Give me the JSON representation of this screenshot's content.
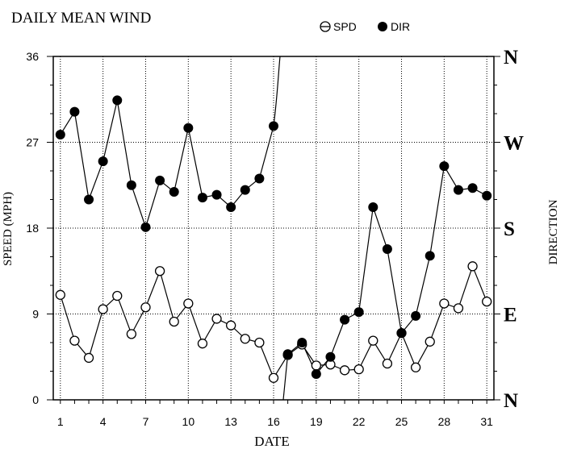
{
  "chart_data": {
    "type": "line",
    "title": "DAILY MEAN WIND",
    "xlabel": "DATE",
    "ylabel": "SPEED (MPH)",
    "y2label": "DIRECTION",
    "xlim": [
      0.5,
      31.5
    ],
    "ylim": [
      0,
      36
    ],
    "x_ticks": [
      1,
      4,
      7,
      10,
      13,
      16,
      19,
      22,
      25,
      28,
      31
    ],
    "y_ticks": [
      0,
      9,
      18,
      27,
      36
    ],
    "y2_ticks": [
      {
        "label": "N",
        "value": 0
      },
      {
        "label": "E",
        "value": 9
      },
      {
        "label": "S",
        "value": 18
      },
      {
        "label": "W",
        "value": 27
      },
      {
        "label": "N",
        "value": 36
      }
    ],
    "grid": true,
    "legend": "top-right",
    "series": [
      {
        "name": "SPD",
        "marker": "open-circle",
        "x": [
          1,
          2,
          3,
          4,
          5,
          6,
          7,
          8,
          9,
          10,
          11,
          12,
          13,
          14,
          15,
          16,
          17,
          18,
          19,
          20,
          21,
          22,
          23,
          24,
          25,
          26,
          27,
          28,
          29,
          30,
          31
        ],
        "values": [
          11.0,
          6.2,
          4.4,
          9.5,
          10.9,
          6.9,
          9.7,
          13.5,
          8.2,
          10.1,
          5.9,
          8.5,
          7.8,
          6.4,
          6.0,
          2.3,
          4.7,
          5.8,
          3.6,
          3.7,
          3.1,
          3.2,
          6.2,
          3.8,
          7.0,
          3.4,
          6.1,
          10.1,
          9.6,
          14.0,
          10.3
        ]
      },
      {
        "name": "DIR",
        "marker": "filled-circle",
        "segments": [
          {
            "x": [
              1,
              2,
              3,
              4,
              5,
              6,
              7,
              8,
              9,
              10,
              11,
              12,
              13,
              14,
              15,
              16
            ],
            "values": [
              27.8,
              30.2,
              21.0,
              25.0,
              31.4,
              22.5,
              18.1,
              23.0,
              21.8,
              28.5,
              21.2,
              21.5,
              20.2,
              22.0,
              23.2,
              28.7
            ]
          },
          {
            "x": [
              17,
              18,
              19,
              20,
              21,
              22,
              23,
              24,
              25,
              26,
              27,
              28,
              29,
              30,
              31
            ],
            "values": [
              4.8,
              6.0,
              2.7,
              4.5,
              8.4,
              9.2,
              20.2,
              15.8,
              7.0,
              8.8,
              15.1,
              24.5,
              22.0,
              22.2,
              21.4
            ]
          }
        ],
        "wrap": [
          {
            "from_x": 16,
            "from_value": 28.7,
            "to_value": 36
          },
          {
            "to_x": 17,
            "from_value": 0,
            "to_value": 4.8
          }
        ]
      }
    ]
  }
}
